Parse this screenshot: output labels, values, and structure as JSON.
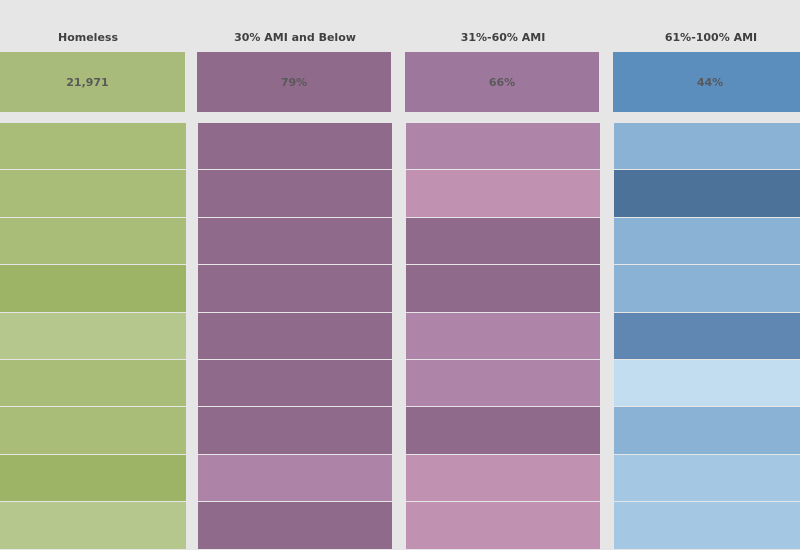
{
  "chart_data": {
    "type": "heatmap",
    "columns": [
      {
        "name": "Homeless",
        "summary": "21,971",
        "header_color": "#a9bb7b",
        "cells": [
          "#a9bd78",
          "#a9bd78",
          "#a9bd78",
          "#9db366",
          "#b5c78c",
          "#a9bd78",
          "#a9bd78",
          "#9db366",
          "#b5c78c"
        ]
      },
      {
        "name": "30% AMI and Below",
        "summary": "79%",
        "header_color": "#8f6a8b",
        "cells": [
          "#8f6a8b",
          "#8f6a8b",
          "#8f6a8b",
          "#8f6a8b",
          "#8f6a8b",
          "#8f6a8b",
          "#8f6a8b",
          "#ad84a7",
          "#8f6a8b"
        ]
      },
      {
        "name": "31%-60% AMI",
        "summary": "66%",
        "header_color": "#9e779c",
        "cells": [
          "#ae84a8",
          "#c091b0",
          "#8f6a8b",
          "#8f6a8b",
          "#ae84a8",
          "#ae84a8",
          "#8f6a8b",
          "#c091b0",
          "#c091b0"
        ]
      },
      {
        "name": "61%-100% AMI",
        "summary": "44%",
        "header_color": "#5b8dbd",
        "cells": [
          "#8ab2d5",
          "#4c7299",
          "#8ab2d5",
          "#8ab2d5",
          "#5f87b1",
          "#c1ddef",
          "#8ab2d5",
          "#a4c7e3",
          "#a4c7e3"
        ]
      }
    ]
  }
}
